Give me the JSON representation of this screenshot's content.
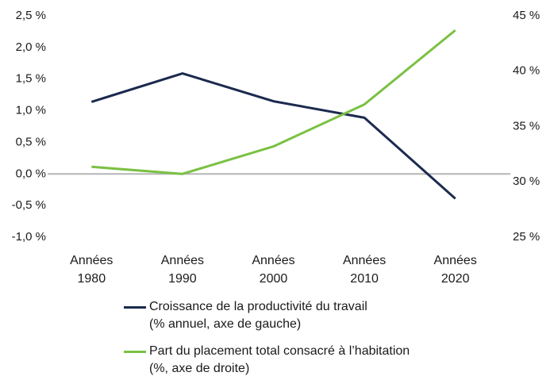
{
  "chart_data": {
    "type": "line",
    "categories": [
      "Années\n1980",
      "Années\n1990",
      "Années\n2000",
      "Années\n2010",
      "Années\n2020"
    ],
    "series": [
      {
        "name": "Croissance de la productivité du travail\n(% annuel, axe de gauche)",
        "color": "#1b2a4e",
        "values": [
          1.14,
          1.59,
          1.15,
          0.89,
          -0.39
        ]
      },
      {
        "name": "Part du placement total consacré à l’habitation\n(%, axe de droite)",
        "color": "#7ac143",
        "axis": "y2",
        "values": [
          31.36,
          30.72,
          33.2,
          37.0,
          43.7
        ]
      }
    ],
    "ylim": [
      -1.0,
      2.5
    ],
    "yticks": [
      {
        "value": 2.5,
        "label": "2,5 %"
      },
      {
        "value": 2.0,
        "label": "2,0 %"
      },
      {
        "value": 1.5,
        "label": "1,5 %"
      },
      {
        "value": 1.0,
        "label": "1,0 %"
      },
      {
        "value": 0.5,
        "label": "0,5 %"
      },
      {
        "value": 0.0,
        "label": "0,0 %"
      },
      {
        "value": -0.5,
        "label": "-0,5 %"
      },
      {
        "value": -1.0,
        "label": "-1,0 %"
      }
    ],
    "y2lim": [
      25,
      45
    ],
    "y2ticks": [
      {
        "value": 45,
        "label": "45 %"
      },
      {
        "value": 40,
        "label": "40 %"
      },
      {
        "value": 35,
        "label": "35 %"
      },
      {
        "value": 30,
        "label": "30 %"
      },
      {
        "value": 25,
        "label": "25 %"
      }
    ]
  }
}
